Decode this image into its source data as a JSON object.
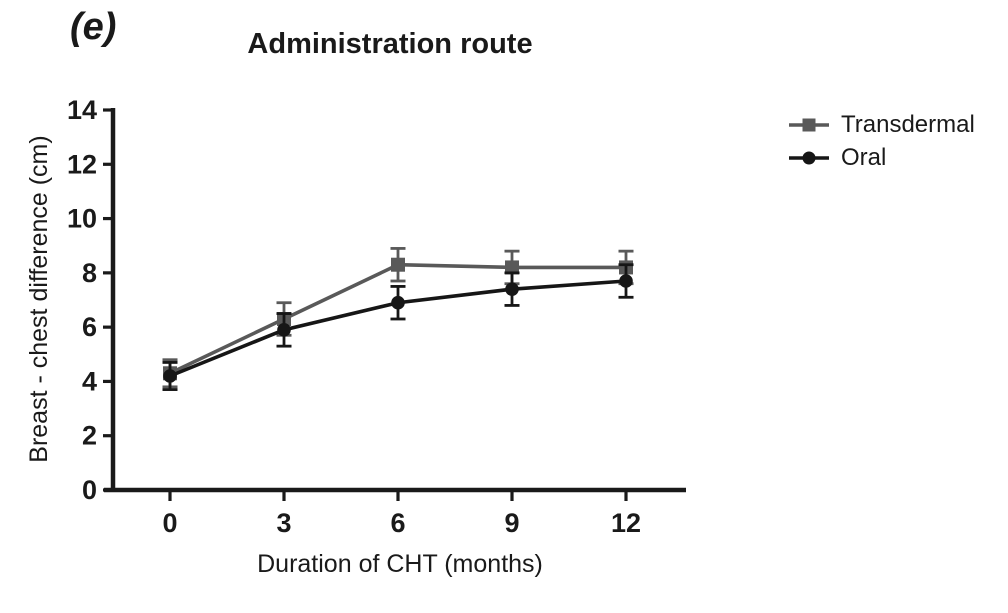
{
  "figure": {
    "panel_label": "(e)",
    "background_color": "#ffffff",
    "text_color": "#1a1a1a"
  },
  "chart_data": {
    "type": "line",
    "title": "Administration route",
    "xlabel": "Duration of CHT (months)",
    "ylabel": "Breast - chest difference (cm)",
    "x": [
      0,
      3,
      6,
      9,
      12
    ],
    "xtick_labels": [
      "0",
      "3",
      "6",
      "9",
      "12"
    ],
    "yticks": [
      0,
      2,
      4,
      6,
      8,
      10,
      12,
      14
    ],
    "ylim": [
      0,
      14
    ],
    "grid": false,
    "legend_position": "right-outside",
    "error_bars": true,
    "series": [
      {
        "name": "Transdermal",
        "marker": "square",
        "color": "#595959",
        "values": [
          4.3,
          6.3,
          8.3,
          8.2,
          8.2
        ],
        "errors": [
          0.5,
          0.6,
          0.6,
          0.6,
          0.6
        ]
      },
      {
        "name": "Oral",
        "marker": "circle",
        "color": "#161616",
        "values": [
          4.2,
          5.9,
          6.9,
          7.4,
          7.7
        ],
        "errors": [
          0.5,
          0.6,
          0.6,
          0.6,
          0.6
        ]
      }
    ]
  }
}
